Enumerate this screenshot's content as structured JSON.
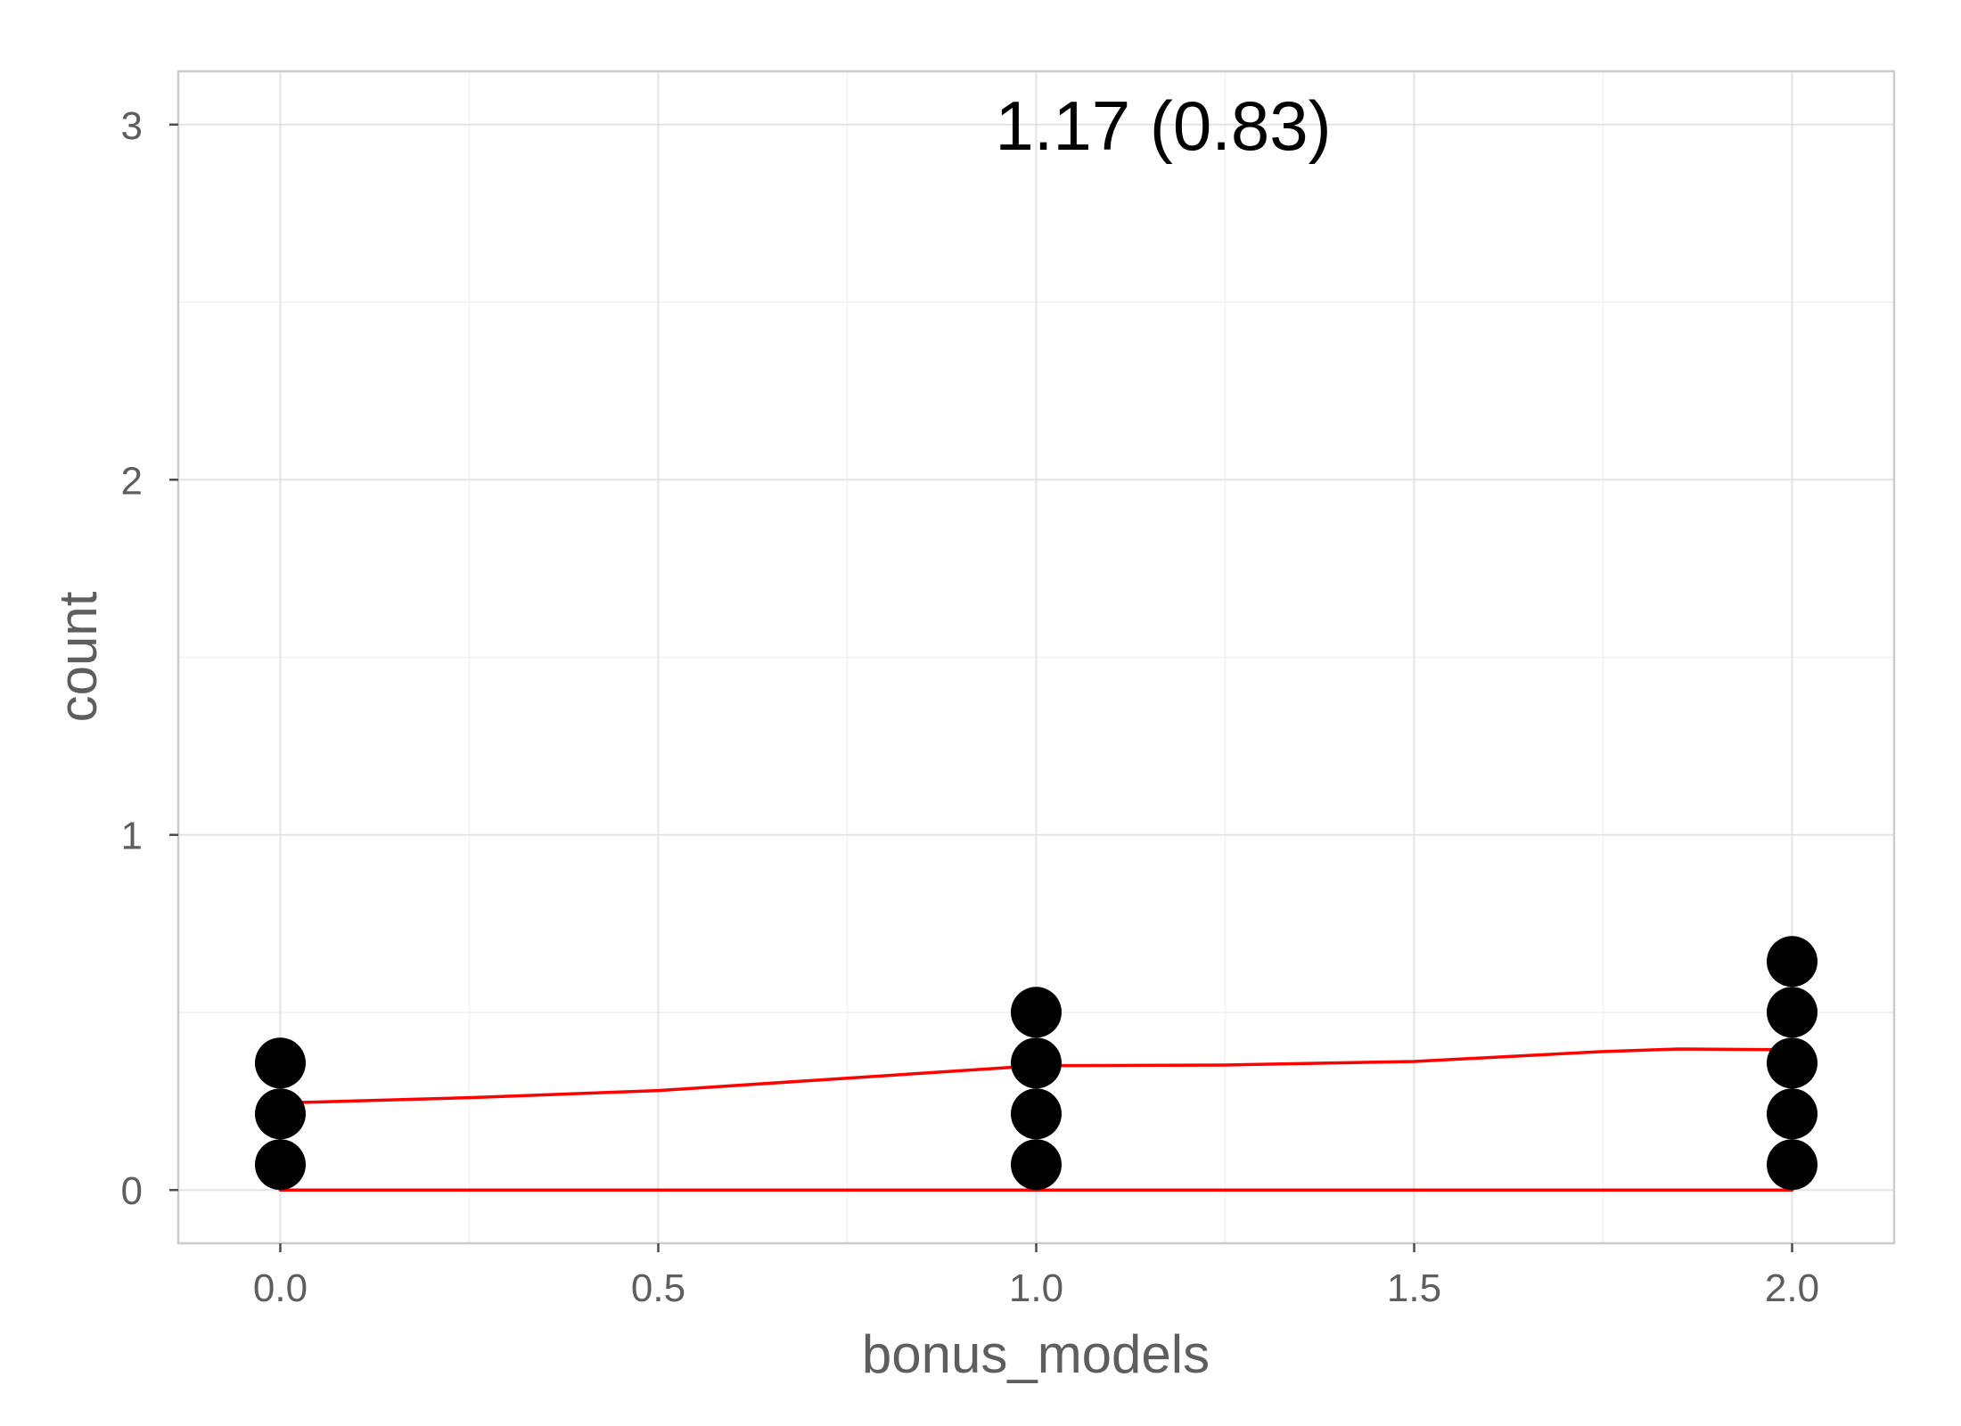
{
  "chart_data": {
    "type": "dotplot",
    "title": "",
    "annotation": "1.17 (0.83)",
    "xlabel": "bonus_models",
    "ylabel": "count",
    "xlim": [
      -0.135,
      2.135
    ],
    "ylim": [
      -0.15,
      3.15
    ],
    "x_ticks": [
      0.0,
      0.5,
      1.0,
      1.5,
      2.0
    ],
    "x_tick_labels": [
      "0.0",
      "0.5",
      "1.0",
      "1.5",
      "2.0"
    ],
    "y_ticks": [
      0,
      1,
      2,
      3
    ],
    "y_tick_labels": [
      "0",
      "1",
      "2",
      "3"
    ],
    "grid": true,
    "dot_color": "#000000",
    "dot_binwidth": 0.14,
    "dot_stacks": [
      {
        "x": 0.0,
        "count": 3
      },
      {
        "x": 1.0,
        "count": 4
      },
      {
        "x": 2.0,
        "count": 5
      }
    ],
    "density_color": "#ff0000",
    "density": {
      "x": [
        0.0,
        0.25,
        0.5,
        0.75,
        1.0,
        1.25,
        1.5,
        1.75,
        1.85,
        2.0
      ],
      "y": [
        0.245,
        0.26,
        0.28,
        0.315,
        0.35,
        0.352,
        0.362,
        0.39,
        0.397,
        0.395
      ]
    }
  }
}
